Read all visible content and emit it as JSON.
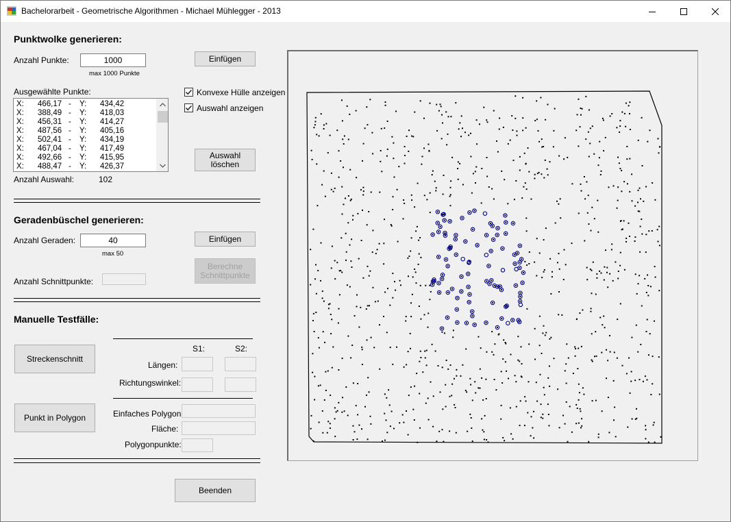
{
  "window": {
    "title": "Bachelorarbeit - Geometrische Algorithmen - Michael Mühlegger - 2013"
  },
  "point_cloud": {
    "heading": "Punktwolke generieren:",
    "count_label": "Anzahl Punkte:",
    "count_value": "1000",
    "count_hint": "max 1000 Punkte",
    "insert_button": "Einfügen",
    "selected_label": "Ausgewählte Punkte:",
    "selected_points": [
      {
        "x": "466,17",
        "y": "434,42"
      },
      {
        "x": "388,49",
        "y": "418,03"
      },
      {
        "x": "456,31",
        "y": "414,27"
      },
      {
        "x": "487,56",
        "y": "405,16"
      },
      {
        "x": "502,41",
        "y": "434,19"
      },
      {
        "x": "467,04",
        "y": "417,49"
      },
      {
        "x": "492,66",
        "y": "415,95"
      },
      {
        "x": "488,47",
        "y": "426,37"
      }
    ],
    "x_label": "X:",
    "y_label": "Y:",
    "dash": "-",
    "convex_hull_checkbox": "Konvexe Hülle anzeigen",
    "convex_hull_checked": true,
    "show_selection_checkbox": "Auswahl anzeigen",
    "show_selection_checked": true,
    "clear_selection_button": "Auswahl\nlöschen",
    "selection_count_label": "Anzahl Auswahl:",
    "selection_count_value": "102"
  },
  "line_bundle": {
    "heading": "Geradenbüschel generieren:",
    "count_label": "Anzahl Geraden:",
    "count_value": "40",
    "count_hint": "max 50",
    "insert_button": "Einfügen",
    "compute_button": "Berechne\nSchnittpunkte",
    "intersections_label": "Anzahl Schnittpunkte:",
    "intersections_value": ""
  },
  "manual_tests": {
    "heading": "Manuelle Testfälle:",
    "segment_button": "Streckenschnitt",
    "s1_label": "S1:",
    "s2_label": "S2:",
    "lengths_label": "Längen:",
    "direction_label": "Richtungswinkel:",
    "point_in_polygon_button": "Punkt in Polygon",
    "simple_polygon_label": "Einfaches Polygon:",
    "area_label": "Fläche:",
    "polygon_points_label": "Polygonpunkte:"
  },
  "exit_button": "Beenden",
  "colors": {
    "point": "#000000",
    "selected_point": "#00008b",
    "hull": "#000000",
    "window_bg": "#f0f0f0"
  }
}
